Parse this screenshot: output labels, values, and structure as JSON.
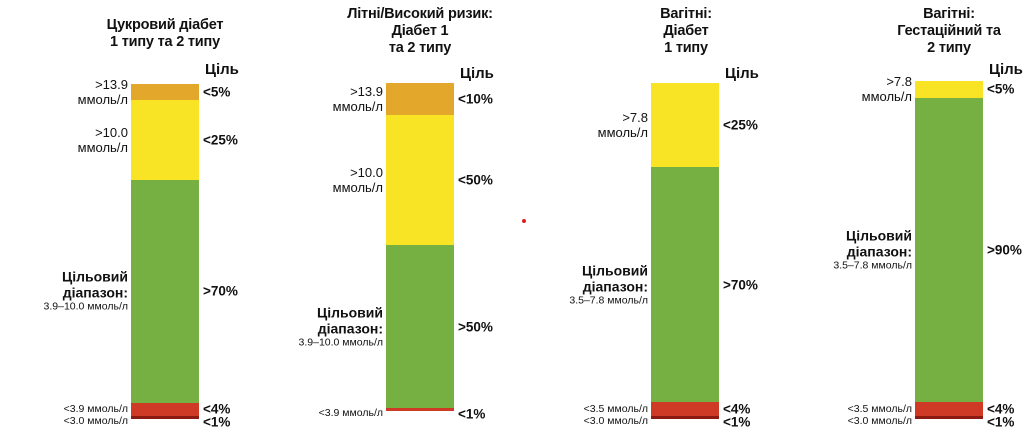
{
  "colors": {
    "very_high": "#e3a72c",
    "high": "#f8e324",
    "in_range": "#76b043",
    "low": "#cf3a26",
    "very_low": "#8b1a12",
    "dot": "#e02020"
  },
  "chart_data": {
    "type": "bar",
    "stacked": true,
    "panels": [
      {
        "title_lines": [
          "Цукровий діабет",
          "1 типу та 2 типу"
        ],
        "goal_header": "Ціль",
        "segments": [
          {
            "key": "very_high",
            "value": 5,
            "label_lines": [
              ">13.9",
              "ммоль/л"
            ],
            "goal": "<5%"
          },
          {
            "key": "high",
            "value": 25,
            "label_lines": [
              ">10.0",
              "ммоль/л"
            ],
            "goal": "<25%"
          },
          {
            "key": "in_range",
            "value": 70,
            "label_name_lines": [
              "Цільовий",
              "діапазон:"
            ],
            "label_range": "3.9–10.0 ммоль/л",
            "goal": ">70%"
          },
          {
            "key": "low",
            "value": 4,
            "label_lines": [
              "<3.9 ммоль/л"
            ],
            "goal": "<4%"
          },
          {
            "key": "very_low",
            "value": 1,
            "label_lines": [
              "<3.0 ммоль/л"
            ],
            "goal": "<1%"
          }
        ]
      },
      {
        "title_lines": [
          "Літні/Високий ризик:",
          "Діабет 1",
          "та 2 типу"
        ],
        "goal_header": "Ціль",
        "segments": [
          {
            "key": "very_high",
            "value": 10,
            "label_lines": [
              ">13.9",
              "ммоль/л"
            ],
            "goal": "<10%"
          },
          {
            "key": "high",
            "value": 40,
            "label_lines": [
              ">10.0",
              "ммоль/л"
            ],
            "goal": "<50%"
          },
          {
            "key": "in_range",
            "value": 50,
            "label_name_lines": [
              "Цільовий",
              "діапазон:"
            ],
            "label_range": "3.9–10.0 ммоль/л",
            "goal": ">50%"
          },
          {
            "key": "low",
            "value": 1,
            "label_lines": [
              "<3.9 ммоль/л"
            ],
            "goal": "<1%"
          }
        ]
      },
      {
        "title_lines": [
          "Вагітні:",
          "Діабет",
          "1 типу"
        ],
        "goal_header": "Ціль",
        "segments": [
          {
            "key": "high",
            "value": 25,
            "label_lines": [
              ">7.8",
              "ммоль/л"
            ],
            "goal": "<25%"
          },
          {
            "key": "in_range",
            "value": 70,
            "label_name_lines": [
              "Цільовий",
              "діапазон:"
            ],
            "label_range": "3.5–7.8 ммоль/л",
            "goal": ">70%"
          },
          {
            "key": "low",
            "value": 4,
            "label_lines": [
              "<3.5 ммоль/л"
            ],
            "goal": "<4%"
          },
          {
            "key": "very_low",
            "value": 1,
            "label_lines": [
              "<3.0 ммоль/л"
            ],
            "goal": "<1%"
          }
        ]
      },
      {
        "title_lines": [
          "Вагітні:",
          "Гестаційний та",
          "2 типу"
        ],
        "goal_header": "Ціль",
        "segments": [
          {
            "key": "high",
            "value": 5,
            "label_lines": [
              ">7.8",
              "ммоль/л"
            ],
            "goal": "<5%"
          },
          {
            "key": "in_range",
            "value": 90,
            "label_name_lines": [
              "Цільовий",
              "діапазон:"
            ],
            "label_range": "3.5–7.8 ммоль/л",
            "goal": ">90%"
          },
          {
            "key": "low",
            "value": 4,
            "label_lines": [
              "<3.5 ммоль/л"
            ],
            "goal": "<4%"
          },
          {
            "key": "very_low",
            "value": 1,
            "label_lines": [
              "<3.0 ммоль/л"
            ],
            "goal": "<1%"
          }
        ]
      }
    ]
  }
}
